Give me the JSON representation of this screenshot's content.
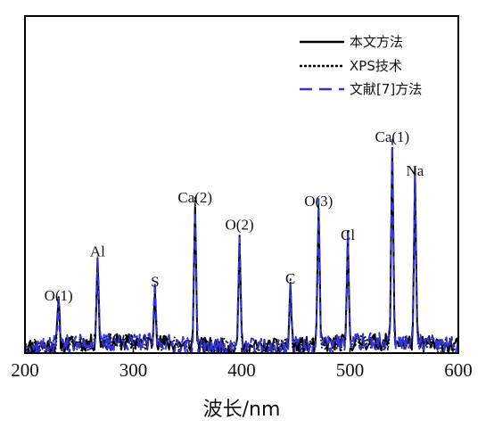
{
  "chart_data": {
    "type": "line",
    "title": "",
    "xlabel": "波长/nm",
    "ylabel": "",
    "xlim": [
      200,
      600
    ],
    "ylim": [
      0,
      1
    ],
    "grid": false,
    "x_ticks": [
      200,
      300,
      400,
      500,
      600
    ],
    "legend_position": "top-right",
    "legend": [
      {
        "label": "本文方法",
        "color": "#000000",
        "style": "solid"
      },
      {
        "label": "XPS技术",
        "color": "#000000",
        "style": "dotted"
      },
      {
        "label": "文献[7]方法",
        "color": "#3333dd",
        "style": "dashed"
      }
    ],
    "peaks": [
      {
        "label": "O(1)",
        "x": 231,
        "y": 0.13
      },
      {
        "label": "Al",
        "x": 267,
        "y": 0.26
      },
      {
        "label": "S",
        "x": 320,
        "y": 0.17
      },
      {
        "label": "Ca(2)",
        "x": 357,
        "y": 0.42
      },
      {
        "label": "O(2)",
        "x": 398,
        "y": 0.34
      },
      {
        "label": "C",
        "x": 445,
        "y": 0.18
      },
      {
        "label": "O(3)",
        "x": 471,
        "y": 0.41
      },
      {
        "label": "Cl",
        "x": 498,
        "y": 0.31
      },
      {
        "label": "Ca(1)",
        "x": 539,
        "y": 0.6
      },
      {
        "label": "Na",
        "x": 560,
        "y": 0.5
      }
    ],
    "series": [
      {
        "name": "本文方法",
        "color": "#000000"
      },
      {
        "name": "XPS技术",
        "color": "#000000"
      },
      {
        "name": "文献[7]方法",
        "color": "#3333dd"
      }
    ]
  }
}
